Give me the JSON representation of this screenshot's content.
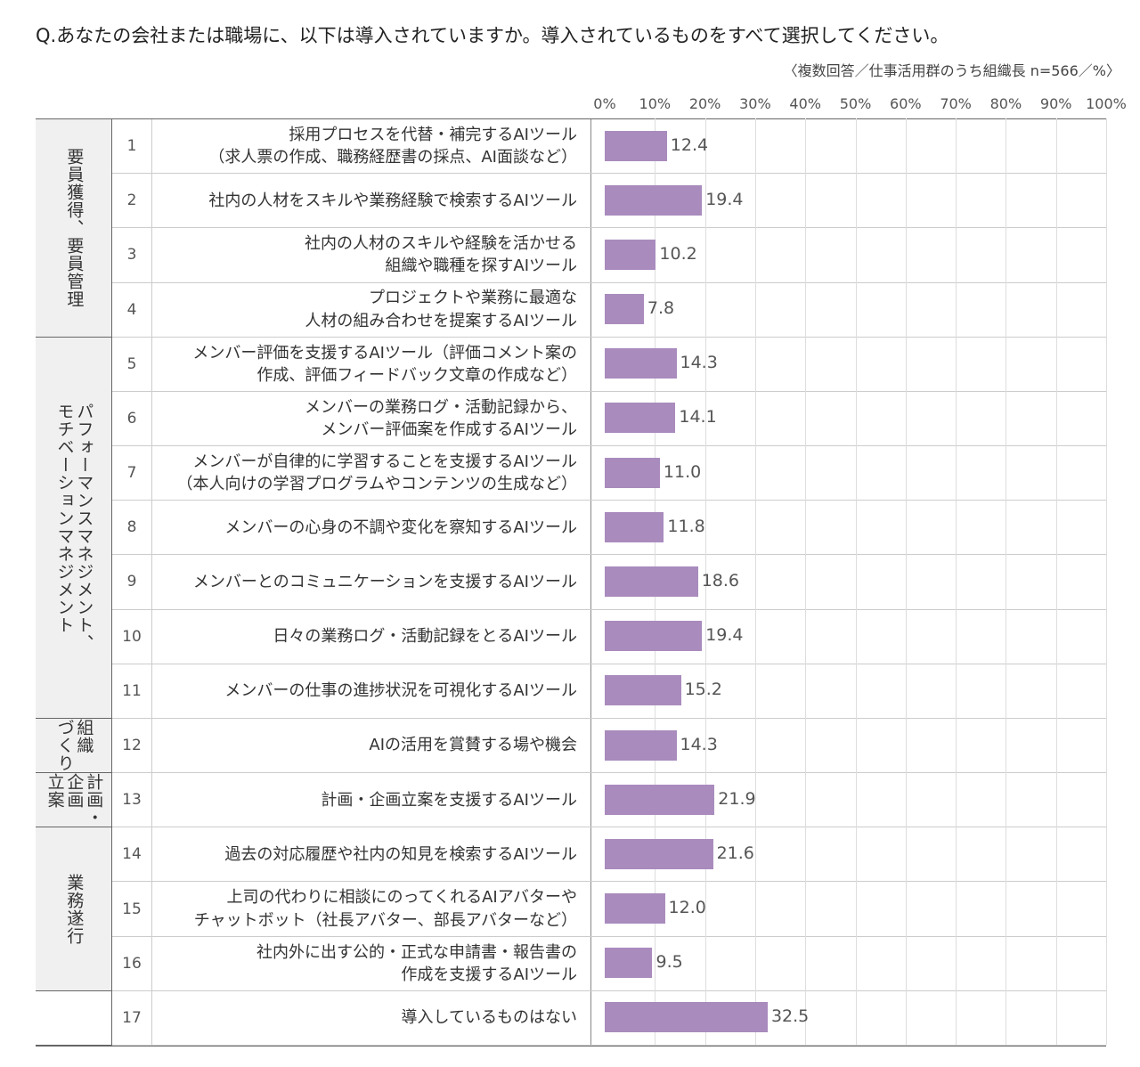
{
  "chart_data": {
    "type": "bar",
    "orientation": "horizontal",
    "title": "Q.あなたの会社または職場に、以下は導入されていますか。導入されているものをすべて選択してください。",
    "subtitle": "〈複数回答／仕事活用群のうち組織長 n=566／%〉",
    "xlim": [
      0,
      100
    ],
    "xticks": [
      "0%",
      "10%",
      "20%",
      "30%",
      "40%",
      "50%",
      "60%",
      "70%",
      "80%",
      "90%",
      "100%"
    ],
    "grid": true,
    "bar_color": "#a98bbd",
    "groups": [
      {
        "label": "要員獲得、要員管理",
        "rows": 4
      },
      {
        "label": "パフォーマンスマネジメント、\nモチベーションマネジメント",
        "rows": 7
      },
      {
        "label": "組織\nづくり",
        "rows": 1
      },
      {
        "label": "計画・\n企画\n立案",
        "rows": 1
      },
      {
        "label": "業務遂行",
        "rows": 3
      },
      {
        "label": "",
        "rows": 1
      }
    ],
    "categories": [
      {
        "no": "1",
        "label": "採用プロセスを代替・補完するAIツール\n（求人票の作成、職務経歴書の採点、AI面談など）"
      },
      {
        "no": "2",
        "label": "社内の人材をスキルや業務経験で検索するAIツール"
      },
      {
        "no": "3",
        "label": "社内の人材のスキルや経験を活かせる\n組織や職種を探すAIツール"
      },
      {
        "no": "4",
        "label": "プロジェクトや業務に最適な\n人材の組み合わせを提案するAIツール"
      },
      {
        "no": "5",
        "label": "メンバー評価を支援するAIツール（評価コメント案の\n作成、評価フィードバック文章の作成など）"
      },
      {
        "no": "6",
        "label": "メンバーの業務ログ・活動記録から、\nメンバー評価案を作成するAIツール"
      },
      {
        "no": "7",
        "label": "メンバーが自律的に学習することを支援するAIツール\n（本人向けの学習プログラムやコンテンツの生成など）"
      },
      {
        "no": "8",
        "label": "メンバーの心身の不調や変化を察知するAIツール"
      },
      {
        "no": "9",
        "label": "メンバーとのコミュニケーションを支援するAIツール"
      },
      {
        "no": "10",
        "label": "日々の業務ログ・活動記録をとるAIツール"
      },
      {
        "no": "11",
        "label": "メンバーの仕事の進捗状況を可視化するAIツール"
      },
      {
        "no": "12",
        "label": "AIの活用を賞賛する場や機会"
      },
      {
        "no": "13",
        "label": "計画・企画立案を支援するAIツール"
      },
      {
        "no": "14",
        "label": "過去の対応履歴や社内の知見を検索するAIツール"
      },
      {
        "no": "15",
        "label": "上司の代わりに相談にのってくれるAIアバターや\nチャットボット（社長アバター、部長アバターなど）"
      },
      {
        "no": "16",
        "label": "社内外に出す公的・正式な申請書・報告書の\n作成を支援するAIツール"
      },
      {
        "no": "17",
        "label": "導入しているものはない"
      }
    ],
    "values": [
      12.4,
      19.4,
      10.2,
      7.8,
      14.3,
      14.1,
      11.0,
      11.8,
      18.6,
      19.4,
      15.2,
      14.3,
      21.9,
      21.6,
      12.0,
      9.5,
      32.5
    ],
    "value_labels": [
      "12.4",
      "19.4",
      "10.2",
      "7.8",
      "14.3",
      "14.1",
      "11.0",
      "11.8",
      "18.6",
      "19.4",
      "15.2",
      "14.3",
      "21.9",
      "21.6",
      "12.0",
      "9.5",
      "32.5"
    ]
  }
}
